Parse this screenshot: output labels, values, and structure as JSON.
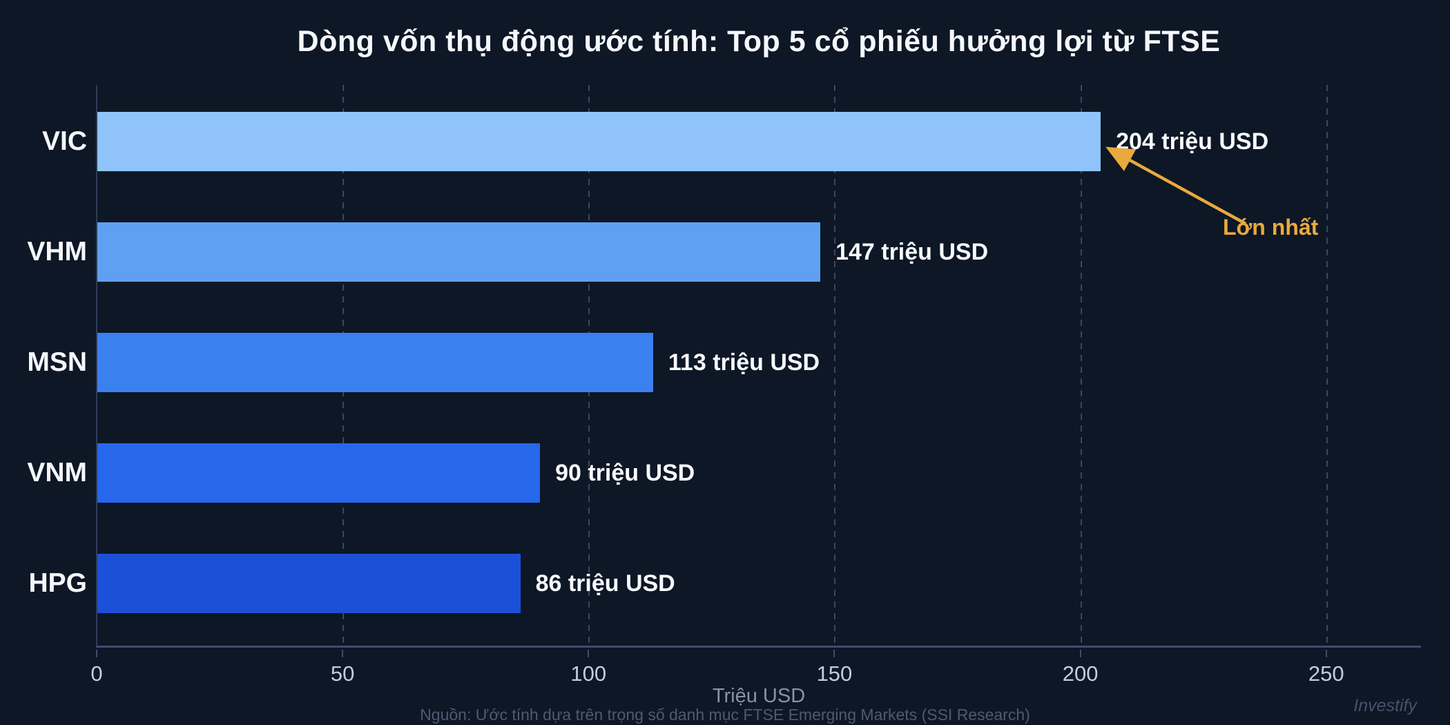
{
  "title": "Dòng vốn thụ động ước tính: Top 5 cổ phiếu hưởng lợi từ FTSE",
  "chart_data": {
    "type": "bar",
    "orientation": "horizontal",
    "title": "Dòng vốn thụ động ước tính: Top 5 cổ phiếu hưởng lợi từ FTSE",
    "categories": [
      "VIC",
      "VHM",
      "MSN",
      "VNM",
      "HPG"
    ],
    "values": [
      204,
      147,
      113,
      90,
      86
    ],
    "value_labels": [
      "204 triệu USD",
      "147 triệu USD",
      "113 triệu USD",
      "90 triệu USD",
      "86 triệu USD"
    ],
    "bar_colors": [
      "#8fc3f9",
      "#5fa0f2",
      "#3b80ef",
      "#2667eb",
      "#1d50d8"
    ],
    "xlabel": "Triệu USD",
    "xlim": [
      0,
      269
    ],
    "xticks": [
      0,
      50,
      100,
      150,
      200,
      250
    ],
    "grid": "vertical-dashed",
    "legend": "none",
    "annotation": {
      "text": "Lớn nhất",
      "target_category": "VIC",
      "color": "#e9a93c"
    }
  },
  "footer": {
    "source": "Nguồn: Ước tính dựa trên trọng số danh mục FTSE Emerging Markets (SSI Research)",
    "watermark": "Investify"
  },
  "colors": {
    "background": "#0d1726",
    "axis_line": "#3d4e6e",
    "tick_label": "#c4cddc",
    "annotation": "#e9a93c",
    "title_text": "#f5f7fa"
  }
}
